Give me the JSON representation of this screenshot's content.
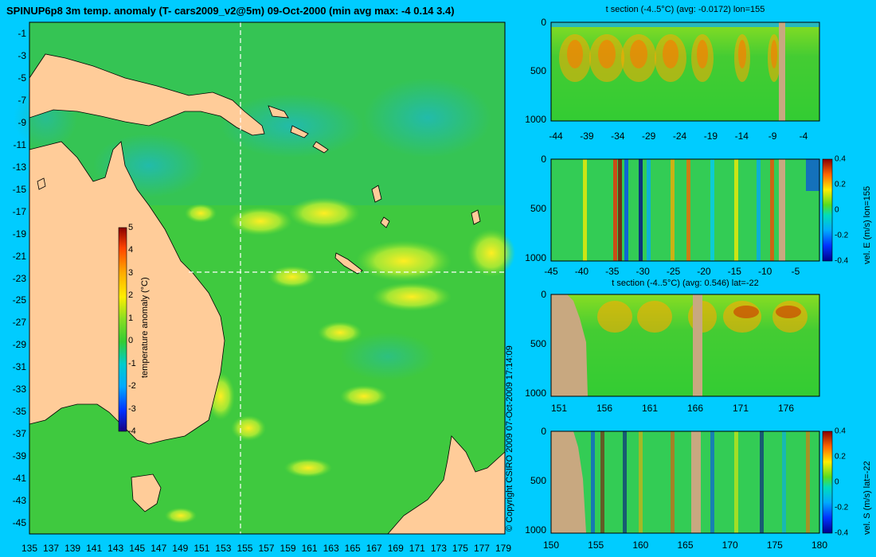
{
  "title": "SPINUP6p8 3m temp. anomaly (T- cars2009_v2@5m) 09-Oct-2000 (min avg max: -4 0.14 3.4)",
  "copyright": "© Copyright CSIRO 2009   07-Oct-2009 17:14:09",
  "colors": {
    "background": "#00ccff",
    "land": "#ffcc99",
    "section_land": "#c8a880",
    "ocean_base": "#33cc33"
  },
  "chart_data": [
    {
      "type": "heatmap",
      "name": "map",
      "x_ticks": [
        "135",
        "137",
        "139",
        "141",
        "143",
        "145",
        "147",
        "149",
        "151",
        "153",
        "155",
        "157",
        "159",
        "161",
        "163",
        "165",
        "167",
        "169",
        "171",
        "173",
        "175",
        "177",
        "179"
      ],
      "y_ticks": [
        "-1",
        "-3",
        "-5",
        "-7",
        "-9",
        "-11",
        "-13",
        "-15",
        "-17",
        "-19",
        "-21",
        "-23",
        "-25",
        "-27",
        "-29",
        "-31",
        "-33",
        "-35",
        "-37",
        "-39",
        "-41",
        "-43",
        "-45"
      ],
      "xlim": [
        135,
        180
      ],
      "ylim": [
        -45,
        0
      ],
      "section_lon": 155,
      "section_lat": -22,
      "colorbar": {
        "label": "temperature anomaly (°C)",
        "ticks": [
          "5",
          "4",
          "3",
          "2",
          "1",
          "0",
          "-1",
          "-2",
          "-3",
          "-4"
        ],
        "range": [
          -4,
          5
        ]
      }
    },
    {
      "type": "heatmap",
      "name": "t-section-lon155",
      "title": "t section (-4..5°C) (avg: -0.0172) lon=155",
      "x_ticks": [
        "-44",
        "-39",
        "-34",
        "-29",
        "-24",
        "-19",
        "-14",
        "-9",
        "-4"
      ],
      "y_ticks": [
        "0",
        "500",
        "1000"
      ]
    },
    {
      "type": "heatmap",
      "name": "vel-e-section-lon155",
      "x_ticks": [
        "-45",
        "-40",
        "-35",
        "-30",
        "-25",
        "-20",
        "-15",
        "-10",
        "-5"
      ],
      "y_ticks": [
        "0",
        "500",
        "1000"
      ],
      "colorbar": {
        "label": "vel. E (m/s) lon=155",
        "ticks": [
          "0.4",
          "0.2",
          "0",
          "-0.2",
          "-0.4"
        ]
      }
    },
    {
      "type": "heatmap",
      "name": "t-section-lat-22",
      "title": "t section (-4..5°C) (avg: 0.546) lat=-22",
      "x_ticks": [
        "151",
        "156",
        "161",
        "166",
        "171",
        "176"
      ],
      "y_ticks": [
        "0",
        "500",
        "1000"
      ]
    },
    {
      "type": "heatmap",
      "name": "vel-s-section-lat-22",
      "x_ticks": [
        "150",
        "155",
        "160",
        "165",
        "170",
        "175",
        "180"
      ],
      "y_ticks": [
        "0",
        "500",
        "1000"
      ],
      "colorbar": {
        "label": "vel. S (m/s) lat=-22",
        "ticks": [
          "0.4",
          "0.2",
          "0",
          "-0.2",
          "-0.4"
        ]
      }
    }
  ]
}
